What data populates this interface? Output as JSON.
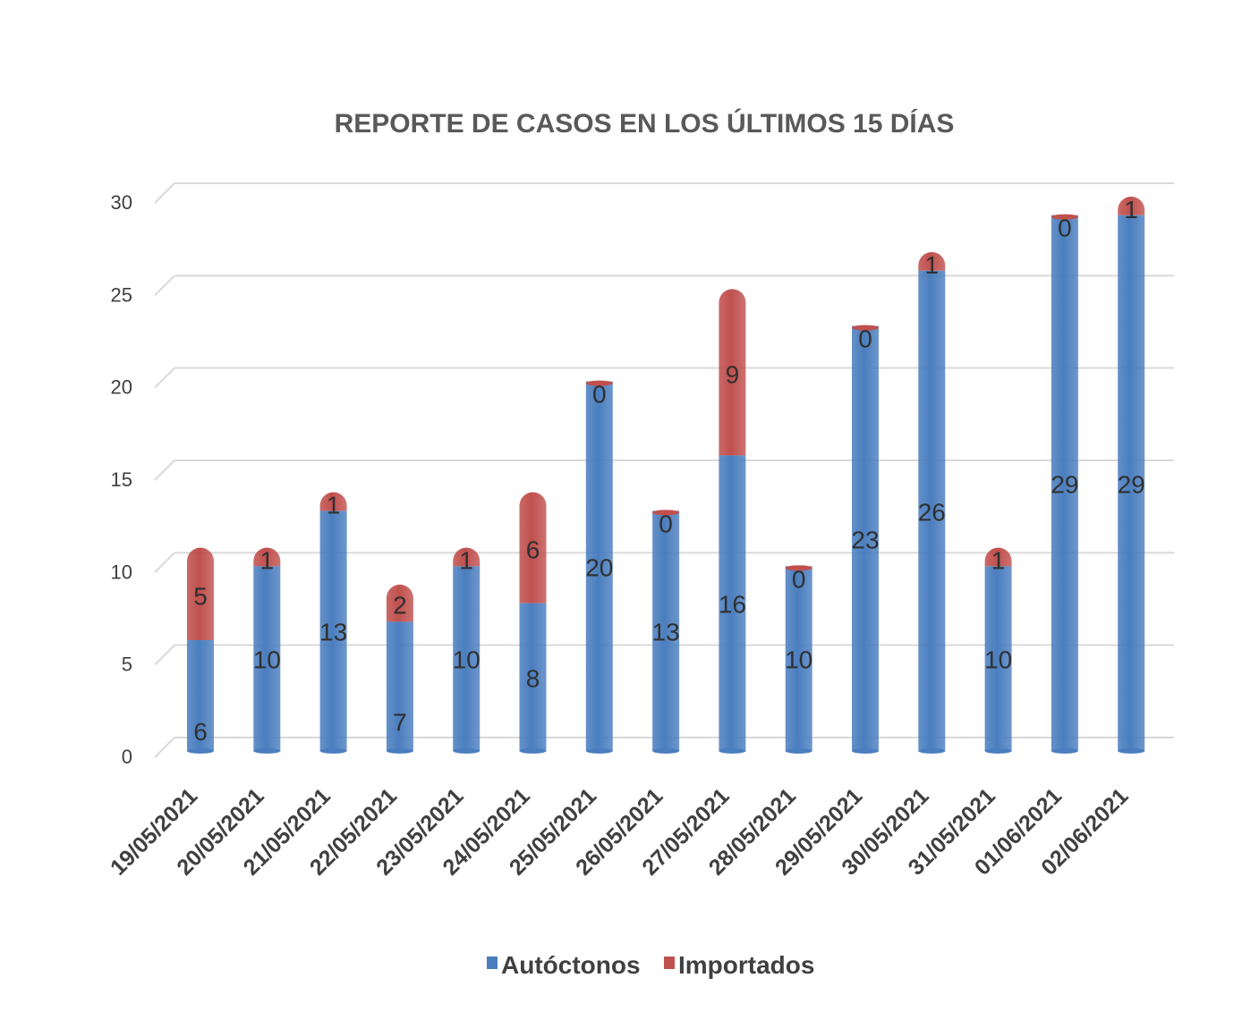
{
  "chart_data": {
    "type": "bar",
    "stacked": true,
    "title": "REPORTE DE CASOS  EN LOS ÚLTIMOS 15 DÍAS",
    "xlabel": "",
    "ylabel": "",
    "ylim": [
      0,
      30
    ],
    "yticks": [
      0,
      5,
      10,
      15,
      20,
      25,
      30
    ],
    "grid": true,
    "legend_position": "bottom",
    "categories": [
      "19/05/2021",
      "20/05/2021",
      "21/05/2021",
      "22/05/2021",
      "23/05/2021",
      "24/05/2021",
      "25/05/2021",
      "26/05/2021",
      "27/05/2021",
      "28/05/2021",
      "29/05/2021",
      "30/05/2021",
      "31/05/2021",
      "01/06/2021",
      "02/06/2021"
    ],
    "series": [
      {
        "name": "Autóctonos",
        "color": "#4a7ebf",
        "values": [
          6,
          10,
          13,
          7,
          10,
          8,
          20,
          13,
          16,
          10,
          23,
          26,
          10,
          29,
          29
        ]
      },
      {
        "name": "Importados",
        "color": "#c0504d",
        "values": [
          5,
          1,
          1,
          2,
          1,
          6,
          0,
          0,
          9,
          0,
          0,
          1,
          1,
          0,
          1
        ]
      }
    ]
  }
}
